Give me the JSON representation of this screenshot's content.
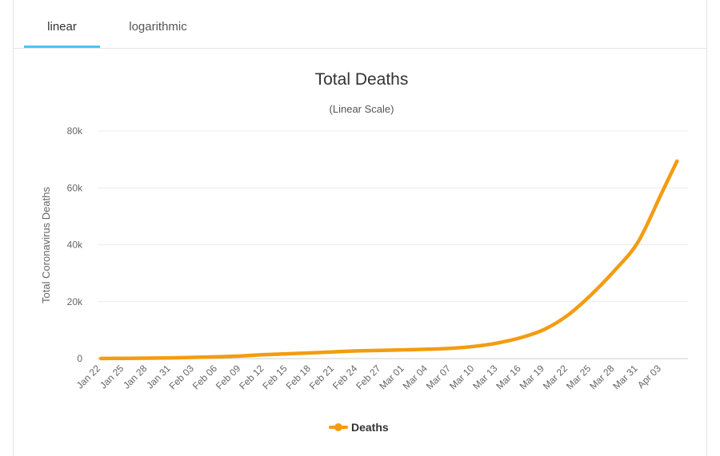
{
  "tabs": [
    {
      "label": "linear",
      "active": true
    },
    {
      "label": "logarithmic",
      "active": false
    }
  ],
  "chart_data": {
    "type": "line",
    "title": "Total Deaths",
    "subtitle": "(Linear Scale)",
    "ylabel": "Total Coronavirus Deaths",
    "xlabel": "",
    "ylim": [
      0,
      80000
    ],
    "yticks": [
      0,
      20000,
      40000,
      60000,
      80000
    ],
    "ytick_labels": [
      "0",
      "20k",
      "40k",
      "60k",
      "80k"
    ],
    "grid": true,
    "legend": "bottom-center",
    "x_tick_labels": [
      "Jan 22",
      "Jan 25",
      "Jan 28",
      "Jan 31",
      "Feb 03",
      "Feb 06",
      "Feb 09",
      "Feb 12",
      "Feb 15",
      "Feb 18",
      "Feb 21",
      "Feb 24",
      "Feb 27",
      "Mar 01",
      "Mar 04",
      "Mar 07",
      "Mar 10",
      "Mar 13",
      "Mar 16",
      "Mar 19",
      "Mar 22",
      "Mar 25",
      "Mar 28",
      "Mar 31",
      "Apr 03"
    ],
    "series": [
      {
        "name": "Deaths",
        "color": "#f39c12",
        "x": [
          "Jan 22",
          "Jan 25",
          "Jan 28",
          "Jan 31",
          "Feb 03",
          "Feb 06",
          "Feb 09",
          "Feb 12",
          "Feb 15",
          "Feb 18",
          "Feb 21",
          "Feb 24",
          "Feb 27",
          "Mar 01",
          "Mar 04",
          "Mar 07",
          "Mar 10",
          "Mar 13",
          "Mar 16",
          "Mar 19",
          "Mar 22",
          "Mar 25",
          "Mar 28",
          "Mar 31",
          "Apr 03",
          "Apr 05"
        ],
        "values": [
          17,
          82,
          133,
          259,
          427,
          638,
          910,
          1370,
          1670,
          2010,
          2360,
          2710,
          2860,
          3070,
          3290,
          3610,
          4300,
          5500,
          7400,
          10300,
          15300,
          22500,
          31000,
          41000,
          58000,
          69400
        ]
      }
    ]
  }
}
